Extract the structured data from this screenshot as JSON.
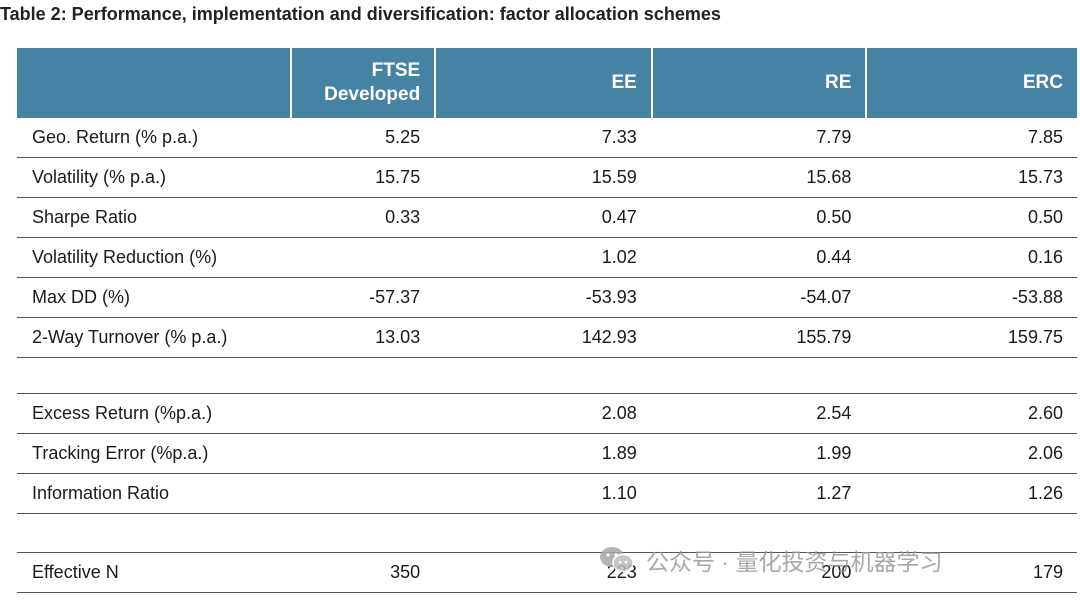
{
  "title": "Table 2: Performance, implementation and diversification: factor allocation schemes",
  "header": {
    "col0": "",
    "col1_line1": "FTSE",
    "col1_line2": "Developed",
    "col2": "EE",
    "col3": "RE",
    "col4": "ERC"
  },
  "section1": [
    {
      "label": "Geo. Return (% p.a.)",
      "ftse": "5.25",
      "ee": "7.33",
      "re": "7.79",
      "erc": "7.85"
    },
    {
      "label": "Volatility (% p.a.)",
      "ftse": "15.75",
      "ee": "15.59",
      "re": "15.68",
      "erc": "15.73"
    },
    {
      "label": "Sharpe Ratio",
      "ftse": "0.33",
      "ee": "0.47",
      "re": "0.50",
      "erc": "0.50"
    },
    {
      "label": "Volatility Reduction (%)",
      "ftse": "",
      "ee": "1.02",
      "re": "0.44",
      "erc": "0.16"
    },
    {
      "label": "Max DD (%)",
      "ftse": "-57.37",
      "ee": "-53.93",
      "re": "-54.07",
      "erc": "-53.88"
    },
    {
      "label": "2-Way Turnover (% p.a.)",
      "ftse": "13.03",
      "ee": "142.93",
      "re": "155.79",
      "erc": "159.75"
    }
  ],
  "section2": [
    {
      "label": "Excess Return (%p.a.)",
      "ftse": "",
      "ee": "2.08",
      "re": "2.54",
      "erc": "2.60"
    },
    {
      "label": "Tracking Error (%p.a.)",
      "ftse": "",
      "ee": "1.89",
      "re": "1.99",
      "erc": "2.06"
    },
    {
      "label": "Information Ratio",
      "ftse": "",
      "ee": "1.10",
      "re": "1.27",
      "erc": "1.26"
    }
  ],
  "section3": [
    {
      "label": "Effective N",
      "ftse": "350",
      "ee": "223",
      "re": "200",
      "erc": "179"
    }
  ],
  "watermark": {
    "text": "公众号 · 量化投资与机器学习",
    "icon": "wechat-icon"
  }
}
